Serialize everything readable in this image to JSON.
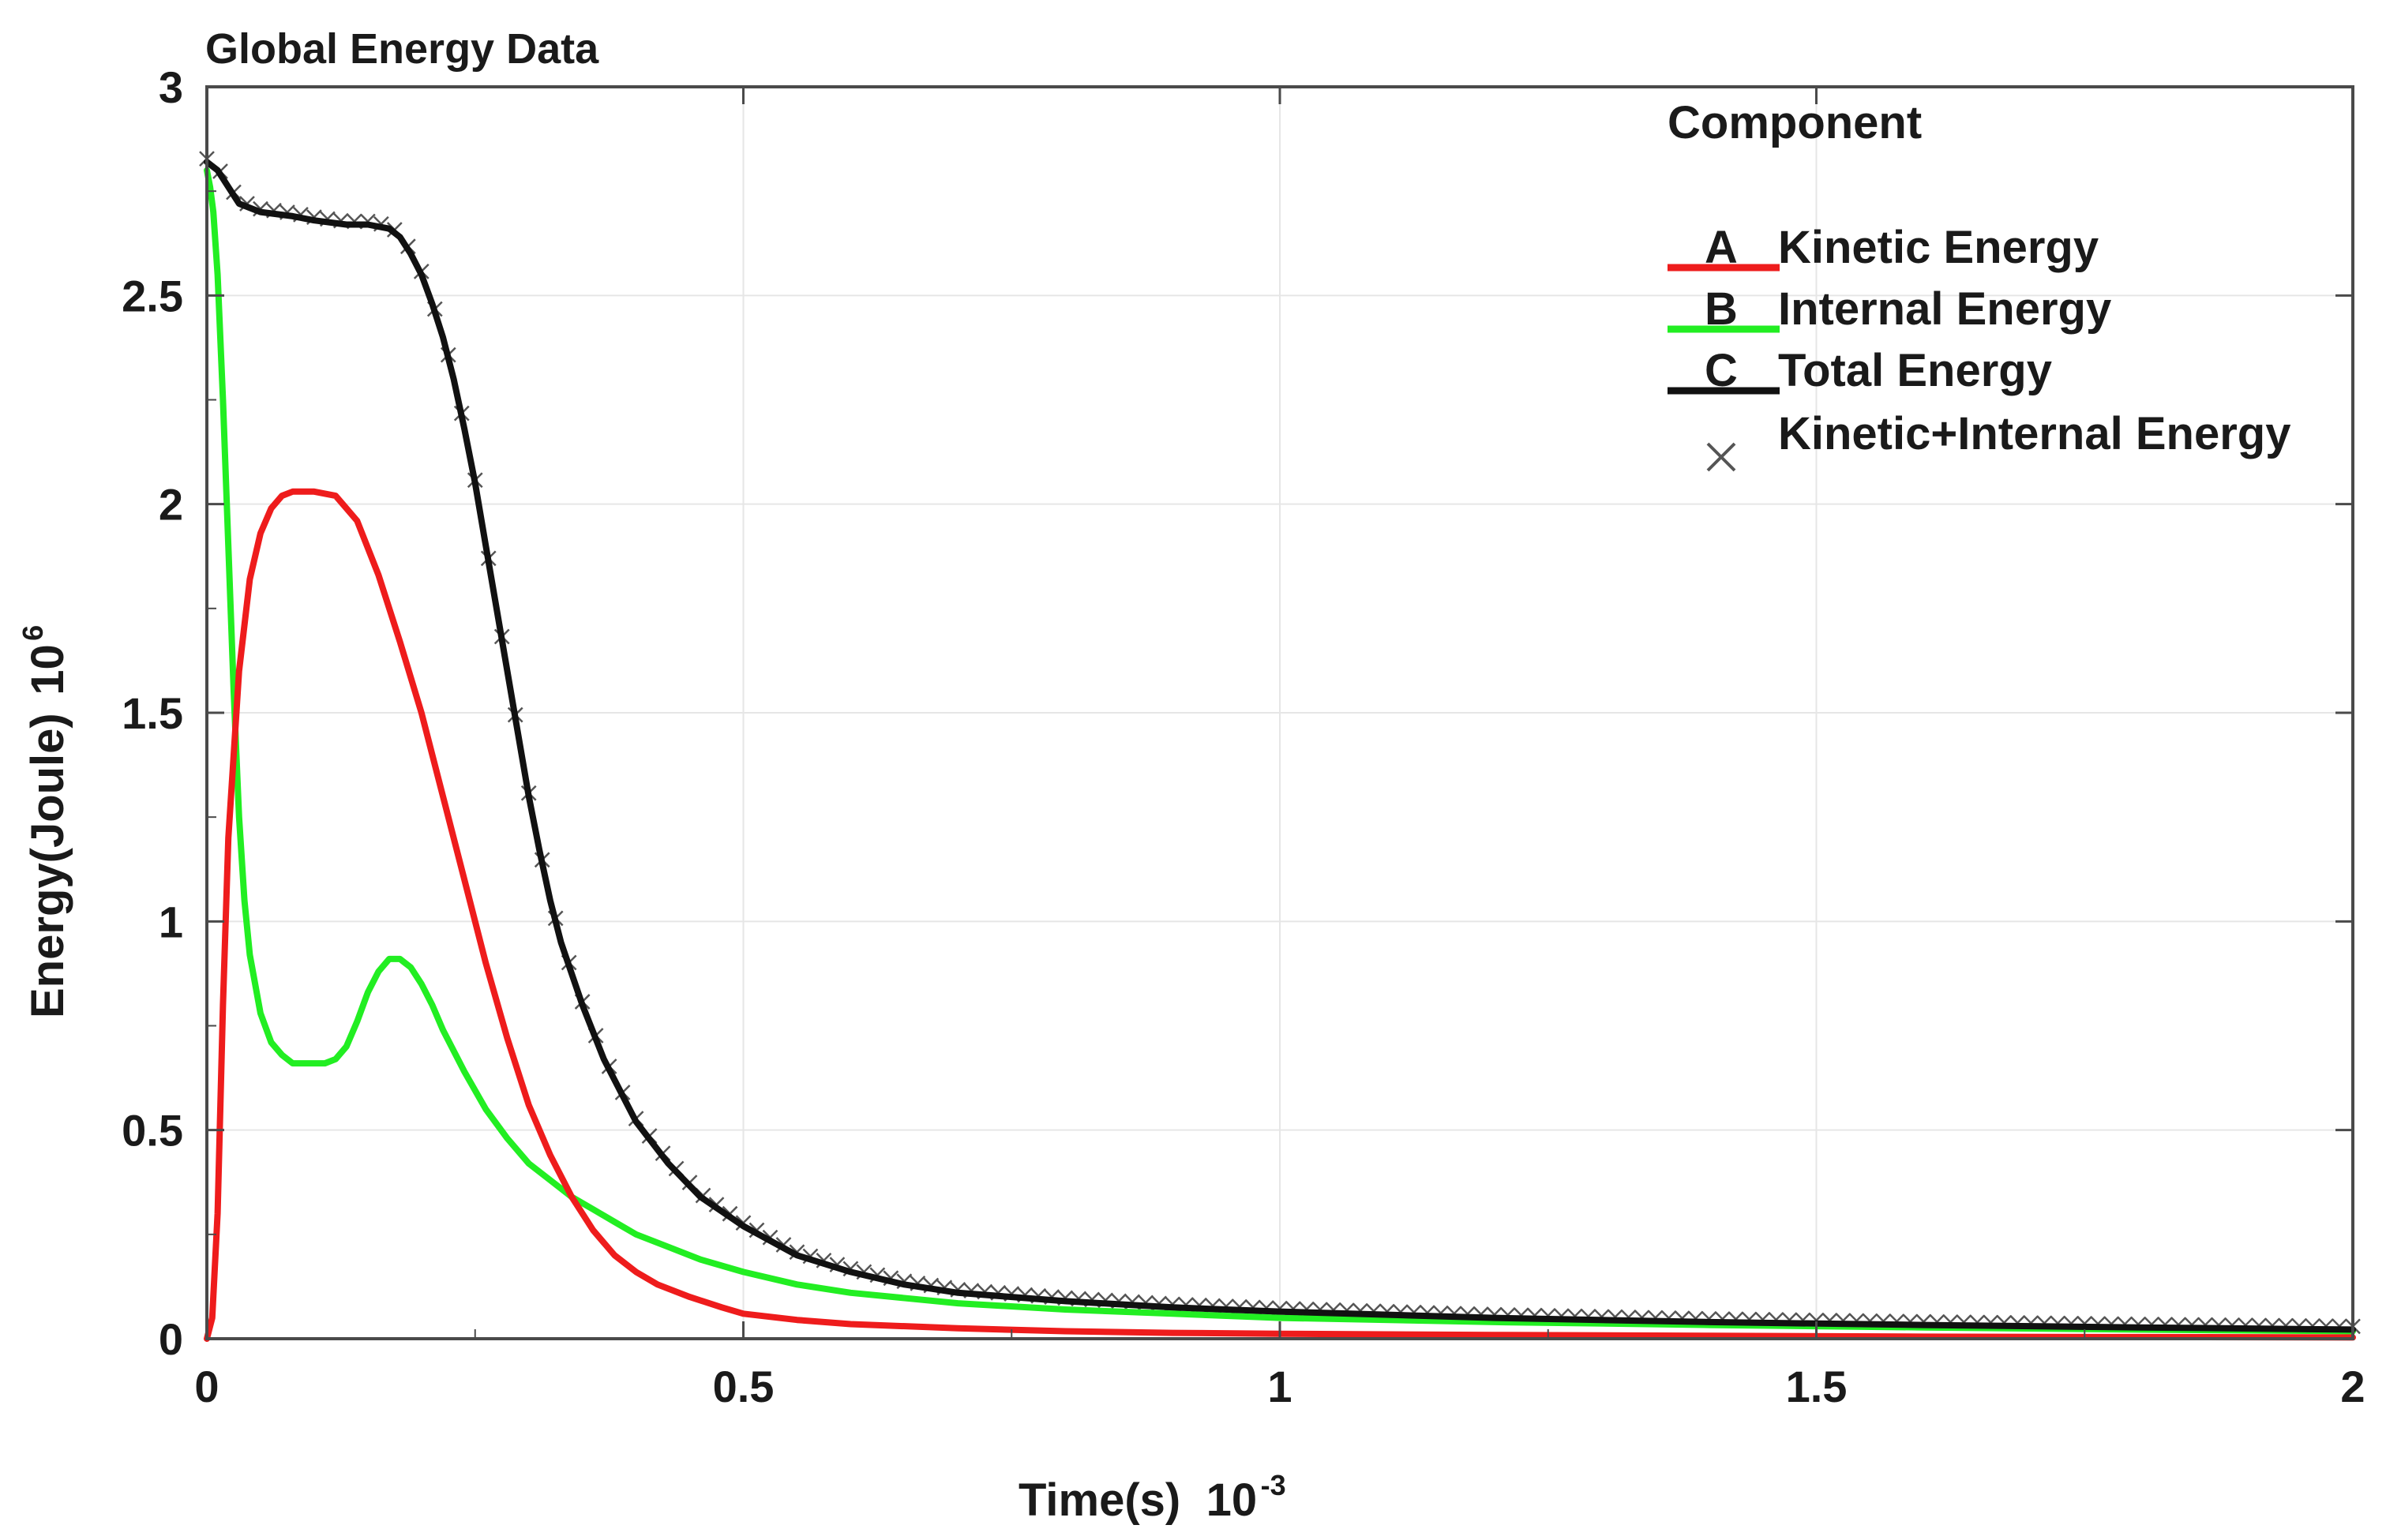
{
  "chart_data": {
    "type": "line",
    "title": "Global Energy Data",
    "xlabel": "Time(s)",
    "xlabel_scale_base": "10",
    "xlabel_scale_exp": "-3",
    "ylabel": "Energy(Joule)",
    "ylabel_scale_base": "10",
    "ylabel_scale_exp": "6",
    "xlim": [
      0,
      2
    ],
    "ylim": [
      0,
      3
    ],
    "x_ticks": [
      0,
      0.5,
      1,
      1.5,
      2
    ],
    "x_tick_labels": [
      "0",
      "0.5",
      "1",
      "1.5",
      "2"
    ],
    "y_ticks": [
      0,
      0.5,
      1,
      1.5,
      2,
      2.5,
      3
    ],
    "y_tick_labels": [
      "0",
      "0.5",
      "1",
      "1.5",
      "2",
      "2.5",
      "3"
    ],
    "legend": {
      "title": "Component",
      "placement": "top-right",
      "entries": [
        {
          "key": "A",
          "label": "Kinetic Energy",
          "color": "#ee1c1c",
          "marker": "line"
        },
        {
          "key": "B",
          "label": "Internal Energy",
          "color": "#22ee22",
          "marker": "line"
        },
        {
          "key": "C",
          "label": "Total Energy",
          "color": "#111111",
          "marker": "line"
        },
        {
          "key": "",
          "label": "Kinetic+Internal Energy",
          "color": "#555555",
          "marker": "x"
        }
      ]
    },
    "series": [
      {
        "name": "Kinetic Energy",
        "color": "#ee1c1c",
        "x": [
          0,
          0.005,
          0.01,
          0.015,
          0.02,
          0.03,
          0.04,
          0.05,
          0.06,
          0.07,
          0.08,
          0.1,
          0.12,
          0.14,
          0.16,
          0.18,
          0.2,
          0.22,
          0.24,
          0.26,
          0.28,
          0.3,
          0.32,
          0.34,
          0.36,
          0.38,
          0.4,
          0.42,
          0.45,
          0.48,
          0.5,
          0.55,
          0.6,
          0.7,
          0.8,
          0.9,
          1.0,
          1.2,
          1.4,
          1.6,
          1.8,
          2.0
        ],
        "y": [
          0,
          0.05,
          0.3,
          0.8,
          1.2,
          1.6,
          1.82,
          1.93,
          1.99,
          2.02,
          2.03,
          2.03,
          2.02,
          1.96,
          1.83,
          1.67,
          1.5,
          1.3,
          1.1,
          0.9,
          0.72,
          0.56,
          0.44,
          0.34,
          0.26,
          0.2,
          0.16,
          0.13,
          0.1,
          0.075,
          0.06,
          0.045,
          0.035,
          0.025,
          0.018,
          0.014,
          0.012,
          0.009,
          0.007,
          0.005,
          0.004,
          0.003
        ]
      },
      {
        "name": "Internal Energy",
        "color": "#22ee22",
        "x": [
          0,
          0.003,
          0.006,
          0.01,
          0.015,
          0.02,
          0.025,
          0.03,
          0.035,
          0.04,
          0.05,
          0.06,
          0.07,
          0.08,
          0.09,
          0.1,
          0.11,
          0.12,
          0.13,
          0.14,
          0.15,
          0.16,
          0.17,
          0.18,
          0.19,
          0.2,
          0.21,
          0.22,
          0.24,
          0.26,
          0.28,
          0.3,
          0.32,
          0.34,
          0.36,
          0.38,
          0.4,
          0.43,
          0.46,
          0.5,
          0.55,
          0.6,
          0.7,
          0.8,
          0.9,
          1.0,
          1.2,
          1.4,
          1.6,
          1.8,
          2.0
        ],
        "y": [
          2.8,
          2.76,
          2.7,
          2.55,
          2.25,
          1.9,
          1.55,
          1.25,
          1.05,
          0.92,
          0.78,
          0.71,
          0.68,
          0.66,
          0.66,
          0.66,
          0.66,
          0.67,
          0.7,
          0.76,
          0.83,
          0.88,
          0.91,
          0.91,
          0.89,
          0.85,
          0.8,
          0.74,
          0.64,
          0.55,
          0.48,
          0.42,
          0.38,
          0.34,
          0.31,
          0.28,
          0.25,
          0.22,
          0.19,
          0.16,
          0.13,
          0.11,
          0.085,
          0.07,
          0.06,
          0.05,
          0.04,
          0.033,
          0.027,
          0.022,
          0.018
        ]
      },
      {
        "name": "Total Energy",
        "color": "#111111",
        "x": [
          0,
          0.01,
          0.02,
          0.03,
          0.05,
          0.08,
          0.1,
          0.13,
          0.15,
          0.17,
          0.18,
          0.19,
          0.2,
          0.21,
          0.22,
          0.23,
          0.24,
          0.25,
          0.26,
          0.27,
          0.28,
          0.29,
          0.3,
          0.31,
          0.32,
          0.33,
          0.35,
          0.37,
          0.4,
          0.43,
          0.46,
          0.5,
          0.55,
          0.6,
          0.65,
          0.7,
          0.8,
          0.9,
          1.0,
          1.2,
          1.4,
          1.6,
          1.8,
          2.0
        ],
        "y": [
          2.82,
          2.8,
          2.76,
          2.72,
          2.7,
          2.69,
          2.68,
          2.67,
          2.67,
          2.66,
          2.64,
          2.6,
          2.55,
          2.48,
          2.4,
          2.3,
          2.18,
          2.05,
          1.9,
          1.75,
          1.6,
          1.45,
          1.3,
          1.17,
          1.05,
          0.95,
          0.8,
          0.67,
          0.52,
          0.42,
          0.34,
          0.27,
          0.2,
          0.16,
          0.13,
          0.11,
          0.09,
          0.075,
          0.065,
          0.05,
          0.04,
          0.033,
          0.027,
          0.022
        ]
      }
    ],
    "marker_series": {
      "name": "Kinetic+Internal Energy",
      "color": "#555555",
      "sampled_from": "Total Energy",
      "spacing": 0.0125
    }
  }
}
